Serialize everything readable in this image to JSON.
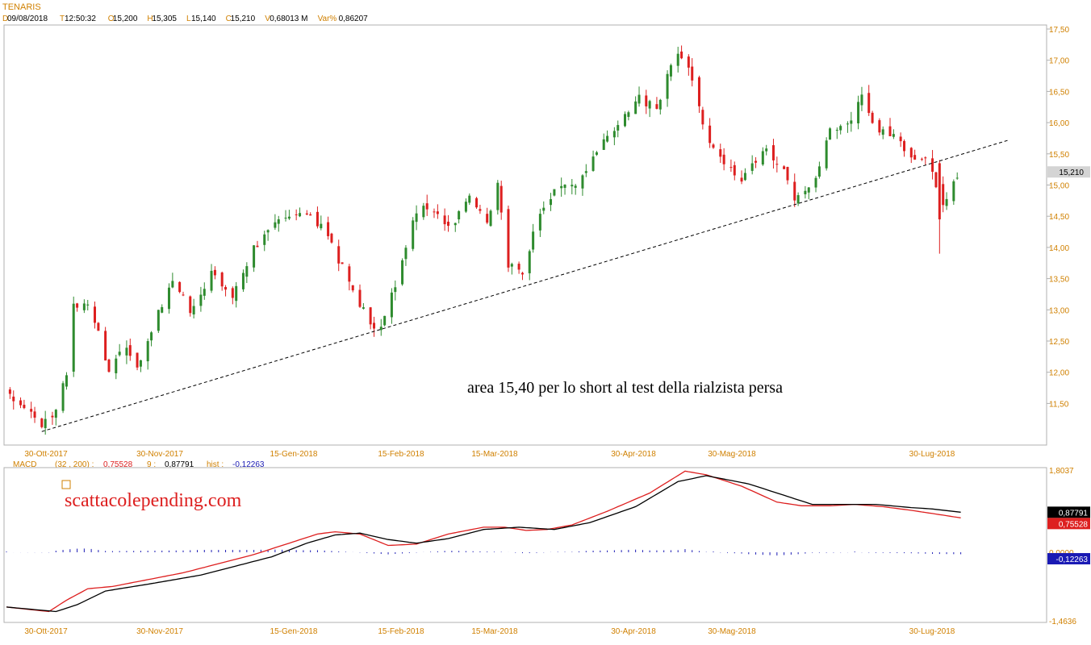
{
  "title": "TENARIS",
  "info_bar": [
    {
      "key": "D",
      "value": "09/08/2018"
    },
    {
      "key": "T",
      "value": "12:50:32"
    },
    {
      "key": "O",
      "value": "15,200"
    },
    {
      "key": "H",
      "value": "15,305"
    },
    {
      "key": "L",
      "value": "15,140"
    },
    {
      "key": "C",
      "value": "15,210"
    },
    {
      "key": "V",
      "value": "0,68013 M"
    },
    {
      "key": "Var%",
      "value": "0,86207"
    }
  ],
  "annotation": "area 15,40 per lo short al test della rialzista persa",
  "watermark": "scattacolepending.com",
  "colors": {
    "label_orange": "#d08000",
    "value_dark": "#000000",
    "candle_up": "#2e8b2e",
    "candle_down": "#dd1f1f",
    "macd_line": "#000000",
    "signal_line": "#dd1f1f",
    "hist": "#1a1ab4",
    "frame": "#b0b0b0"
  },
  "chart_data": [
    {
      "type": "candlestick",
      "name": "price",
      "ylim": [
        11.0,
        17.5
      ],
      "yticks": [
        "11,50",
        "12,00",
        "12,50",
        "13,00",
        "13,50",
        "14,00",
        "14,50",
        "15,00",
        "15,50",
        "16,00",
        "16,50",
        "17,00",
        "17,50"
      ],
      "xticks": [
        "30-Ott-2017",
        "30-Nov-2017",
        "15-Gen-2018",
        "15-Feb-2018",
        "15-Mar-2018",
        "30-Apr-2018",
        "30-Mag-2018",
        "30-Lug-2018"
      ],
      "last_price_label": "15,210",
      "last_price": 15.21,
      "trendline": {
        "style": "dashed",
        "from_price": 11.05,
        "to_price": 15.72,
        "from_index": 10,
        "to_index": 263
      },
      "waypoints": [
        [
          0,
          11.7
        ],
        [
          10,
          11.15
        ],
        [
          14,
          11.4
        ],
        [
          17,
          12.0
        ],
        [
          19,
          13.1
        ],
        [
          24,
          13.0
        ],
        [
          29,
          12.0
        ],
        [
          33,
          12.5
        ],
        [
          37,
          12.1
        ],
        [
          42,
          12.8
        ],
        [
          47,
          13.5
        ],
        [
          52,
          13.0
        ],
        [
          58,
          13.6
        ],
        [
          64,
          13.2
        ],
        [
          70,
          14.0
        ],
        [
          77,
          14.4
        ],
        [
          84,
          14.6
        ],
        [
          91,
          14.2
        ],
        [
          97,
          13.4
        ],
        [
          103,
          12.8
        ],
        [
          106,
          12.7
        ],
        [
          110,
          13.4
        ],
        [
          115,
          14.5
        ],
        [
          120,
          14.7
        ],
        [
          126,
          14.3
        ],
        [
          131,
          14.9
        ],
        [
          136,
          14.4
        ],
        [
          139,
          15.0
        ],
        [
          142,
          13.7
        ],
        [
          146,
          13.6
        ],
        [
          151,
          14.6
        ],
        [
          156,
          15.0
        ],
        [
          162,
          15.0
        ],
        [
          168,
          15.6
        ],
        [
          174,
          16.0
        ],
        [
          179,
          16.4
        ],
        [
          184,
          16.2
        ],
        [
          189,
          17.1
        ],
        [
          193,
          16.9
        ],
        [
          198,
          15.8
        ],
        [
          203,
          15.4
        ],
        [
          208,
          15.1
        ],
        [
          215,
          15.6
        ],
        [
          220,
          15.2
        ],
        [
          223,
          14.8
        ],
        [
          228,
          15.0
        ],
        [
          233,
          15.9
        ],
        [
          238,
          16.0
        ],
        [
          242,
          16.4
        ],
        [
          246,
          15.9
        ],
        [
          251,
          15.8
        ],
        [
          256,
          15.4
        ],
        [
          261,
          15.5
        ],
        [
          264,
          14.6
        ],
        [
          270,
          15.2
        ]
      ]
    },
    {
      "type": "line",
      "name": "MACD",
      "label": "MACD",
      "params": "(32 , 200)",
      "ylim": [
        -1.4636,
        1.8037
      ],
      "ytick_top": "1,8037",
      "ytick_bottom": "-1,4636",
      "ytick_zero": "0,0000",
      "series": [
        {
          "name": "MACD",
          "label_value": "0,75528",
          "value": 0.75528,
          "color": "#dd1f1f",
          "waypoints": [
            [
              0,
              -1.2
            ],
            [
              12,
              -1.3
            ],
            [
              17,
              -1.05
            ],
            [
              23,
              -0.8
            ],
            [
              30,
              -0.75
            ],
            [
              40,
              -0.6
            ],
            [
              50,
              -0.45
            ],
            [
              60,
              -0.25
            ],
            [
              70,
              -0.05
            ],
            [
              80,
              0.2
            ],
            [
              88,
              0.4
            ],
            [
              93,
              0.45
            ],
            [
              100,
              0.4
            ],
            [
              108,
              0.15
            ],
            [
              116,
              0.18
            ],
            [
              125,
              0.4
            ],
            [
              135,
              0.55
            ],
            [
              141,
              0.55
            ],
            [
              147,
              0.48
            ],
            [
              153,
              0.5
            ],
            [
              160,
              0.6
            ],
            [
              170,
              0.9
            ],
            [
              182,
              1.3
            ],
            [
              192,
              1.78
            ],
            [
              198,
              1.7
            ],
            [
              208,
              1.45
            ],
            [
              218,
              1.1
            ],
            [
              225,
              1.02
            ],
            [
              233,
              1.02
            ],
            [
              240,
              1.05
            ],
            [
              248,
              1.0
            ],
            [
              256,
              0.92
            ],
            [
              262,
              0.85
            ],
            [
              270,
              0.755
            ]
          ]
        },
        {
          "name": "9",
          "label_value": "0,87791",
          "value": 0.87791,
          "color": "#000000",
          "waypoints": [
            [
              0,
              -1.2
            ],
            [
              14,
              -1.3
            ],
            [
              20,
              -1.15
            ],
            [
              28,
              -0.85
            ],
            [
              40,
              -0.7
            ],
            [
              55,
              -0.5
            ],
            [
              65,
              -0.3
            ],
            [
              75,
              -0.1
            ],
            [
              85,
              0.2
            ],
            [
              93,
              0.38
            ],
            [
              100,
              0.42
            ],
            [
              108,
              0.28
            ],
            [
              116,
              0.2
            ],
            [
              125,
              0.3
            ],
            [
              135,
              0.5
            ],
            [
              145,
              0.55
            ],
            [
              155,
              0.5
            ],
            [
              165,
              0.65
            ],
            [
              178,
              1.0
            ],
            [
              190,
              1.55
            ],
            [
              198,
              1.68
            ],
            [
              210,
              1.5
            ],
            [
              220,
              1.25
            ],
            [
              228,
              1.05
            ],
            [
              236,
              1.05
            ],
            [
              246,
              1.05
            ],
            [
              256,
              0.98
            ],
            [
              262,
              0.95
            ],
            [
              270,
              0.878
            ]
          ]
        }
      ]
    },
    {
      "type": "bar",
      "name": "hist",
      "label": "hist",
      "label_value": "-0,12263",
      "value": -0.12263,
      "color": "#1a1ab4"
    }
  ]
}
